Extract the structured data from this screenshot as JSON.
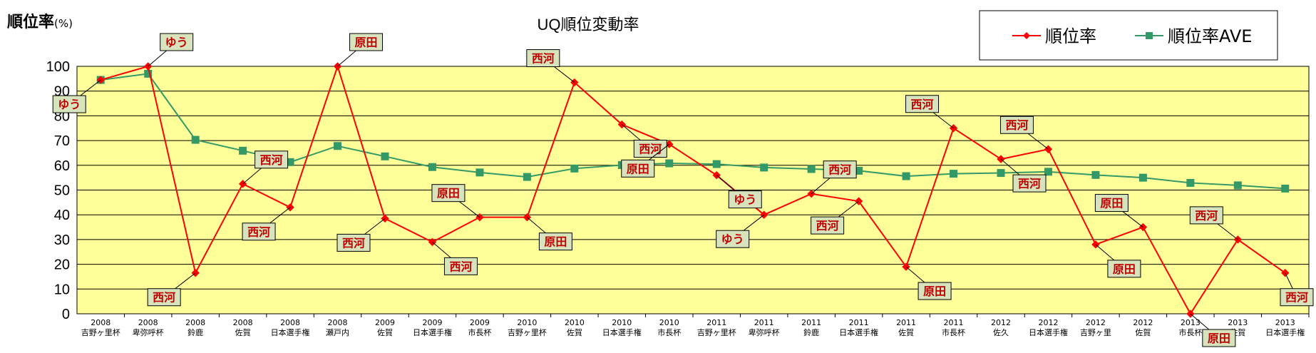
{
  "chart_data": {
    "type": "line",
    "title": "UQ順位変動率",
    "ylabel": "順位率",
    "ylabel_unit": "(%)",
    "ylim": [
      0,
      100
    ],
    "yticks": [
      0,
      10,
      20,
      30,
      40,
      50,
      60,
      70,
      80,
      90,
      100
    ],
    "grid": true,
    "legend_placement": "top-right",
    "plot_background": "#FFFF99",
    "categories": [
      {
        "year": "2008",
        "event": "吉野ヶ里杯"
      },
      {
        "year": "2008",
        "event": "卑弥呼杯"
      },
      {
        "year": "2008",
        "event": "鈴鹿"
      },
      {
        "year": "2008",
        "event": "佐賀"
      },
      {
        "year": "2008",
        "event": "日本選手権"
      },
      {
        "year": "2008",
        "event": "瀬戸内"
      },
      {
        "year": "2009",
        "event": "佐賀"
      },
      {
        "year": "2009",
        "event": "日本選手権"
      },
      {
        "year": "2009",
        "event": "市長杯"
      },
      {
        "year": "2010",
        "event": "吉野ヶ里杯"
      },
      {
        "year": "2010",
        "event": "佐賀"
      },
      {
        "year": "2010",
        "event": "日本選手権"
      },
      {
        "year": "2010",
        "event": "市長杯"
      },
      {
        "year": "2011",
        "event": "吉野ヶ里杯"
      },
      {
        "year": "2011",
        "event": "卑弥呼杯"
      },
      {
        "year": "2011",
        "event": "鈴鹿"
      },
      {
        "year": "2011",
        "event": "日本選手権"
      },
      {
        "year": "2011",
        "event": "佐賀"
      },
      {
        "year": "2011",
        "event": "市長杯"
      },
      {
        "year": "2012",
        "event": "佐久"
      },
      {
        "year": "2012",
        "event": "日本選手権"
      },
      {
        "year": "2012",
        "event": "吉野ヶ里"
      },
      {
        "year": "2012",
        "event": "佐賀"
      },
      {
        "year": "2013",
        "event": "市長杯"
      },
      {
        "year": "2013",
        "event": "佐賀"
      },
      {
        "year": "2013",
        "event": "日本選手権"
      }
    ],
    "series": [
      {
        "name": "順位率",
        "color": "#FF0000",
        "marker": "diamond",
        "values": [
          94.5,
          100,
          16.5,
          52.5,
          43,
          100,
          38.5,
          29,
          39,
          39,
          93.5,
          76.5,
          68.5,
          56,
          40,
          48.5,
          45.5,
          19,
          75,
          62.5,
          66.5,
          28,
          35,
          0,
          30,
          16.5
        ]
      },
      {
        "name": "順位率AVE",
        "color": "#339966",
        "marker": "square",
        "values": [
          94.5,
          97,
          70.3,
          65.9,
          61.3,
          67.8,
          63.6,
          59.3,
          57.1,
          55.3,
          58.7,
          60.1,
          60.8,
          60.5,
          59.1,
          58.5,
          57.8,
          55.6,
          56.6,
          56.9,
          57.4,
          56.1,
          55.0,
          52.9,
          51.9,
          50.6
        ]
      }
    ],
    "annotations": [
      {
        "index": 0,
        "text": "ゆう"
      },
      {
        "index": 1,
        "text": "ゆう"
      },
      {
        "index": 2,
        "text": "西河"
      },
      {
        "index": 3,
        "text": "西河"
      },
      {
        "index": 4,
        "text": "西河"
      },
      {
        "index": 5,
        "text": "原田"
      },
      {
        "index": 6,
        "text": "西河"
      },
      {
        "index": 7,
        "text": "西河"
      },
      {
        "index": 8,
        "text": "原田"
      },
      {
        "index": 9,
        "text": "原田"
      },
      {
        "index": 10,
        "text": "西河"
      },
      {
        "index": 11,
        "text": "西河"
      },
      {
        "index": 12,
        "text": "原田"
      },
      {
        "index": 13,
        "text": "ゆう"
      },
      {
        "index": 14,
        "text": "ゆう"
      },
      {
        "index": 15,
        "text": "西河"
      },
      {
        "index": 16,
        "text": "西河"
      },
      {
        "index": 17,
        "text": "原田"
      },
      {
        "index": 18,
        "text": "西河"
      },
      {
        "index": 19,
        "text": "西河"
      },
      {
        "index": 20,
        "text": "西河"
      },
      {
        "index": 21,
        "text": "原田"
      },
      {
        "index": 22,
        "text": "原田"
      },
      {
        "index": 23,
        "text": "原田"
      },
      {
        "index": 24,
        "text": "西河"
      },
      {
        "index": 25,
        "text": "西河"
      }
    ]
  }
}
